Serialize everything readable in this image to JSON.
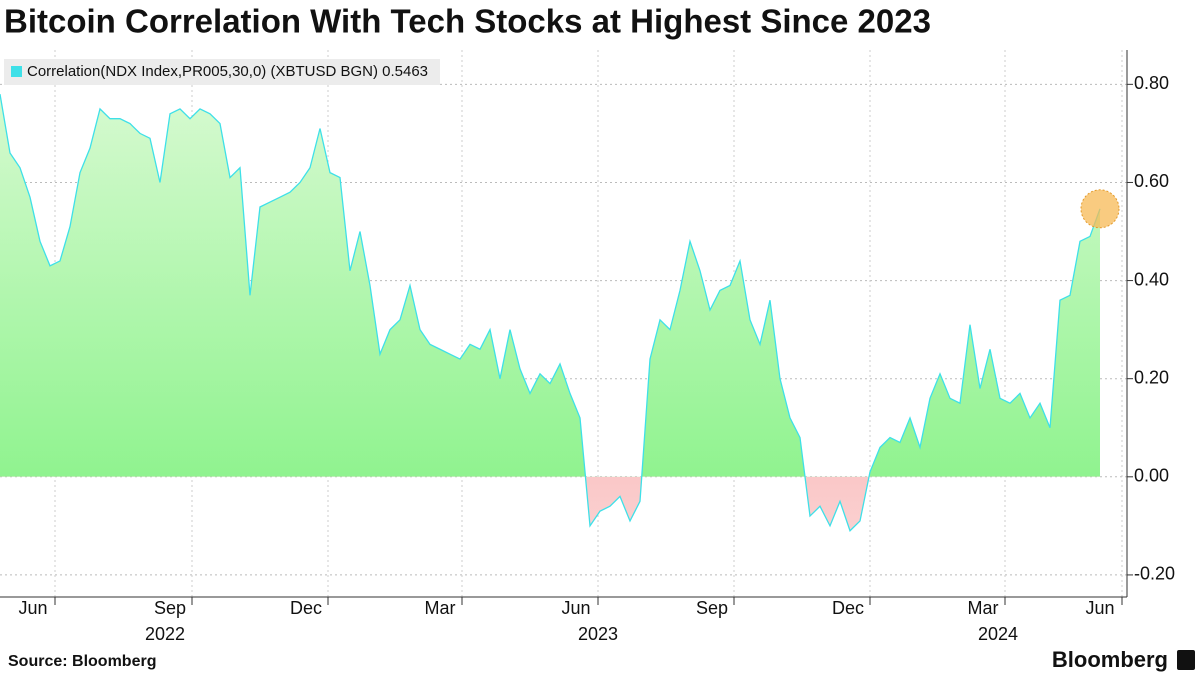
{
  "chart_data": {
    "type": "area",
    "title": "Bitcoin Correlation With Tech Stocks at Highest Since 2023",
    "source": "Source: Bloomberg",
    "brand": "Bloomberg",
    "series": [
      {
        "name": "Correlation(NDX Index,PR005,30,0) (XBTUSD BGN) 0.5463",
        "color": "#3ee0e8",
        "positive_color": "#86f286",
        "negative_color": "#f48a8a",
        "values": [
          0.78,
          0.66,
          0.63,
          0.57,
          0.48,
          0.43,
          0.44,
          0.51,
          0.62,
          0.67,
          0.75,
          0.73,
          0.73,
          0.72,
          0.7,
          0.69,
          0.6,
          0.74,
          0.75,
          0.73,
          0.75,
          0.74,
          0.72,
          0.61,
          0.63,
          0.37,
          0.55,
          0.56,
          0.57,
          0.58,
          0.6,
          0.63,
          0.71,
          0.62,
          0.61,
          0.42,
          0.5,
          0.39,
          0.25,
          0.3,
          0.32,
          0.39,
          0.3,
          0.27,
          0.26,
          0.25,
          0.24,
          0.27,
          0.26,
          0.3,
          0.2,
          0.3,
          0.22,
          0.17,
          0.21,
          0.19,
          0.23,
          0.17,
          0.12,
          -0.1,
          -0.07,
          -0.06,
          -0.04,
          -0.09,
          -0.05,
          0.24,
          0.32,
          0.3,
          0.38,
          0.48,
          0.42,
          0.34,
          0.38,
          0.39,
          0.44,
          0.32,
          0.27,
          0.36,
          0.2,
          0.12,
          0.08,
          -0.08,
          -0.06,
          -0.1,
          -0.05,
          -0.11,
          -0.09,
          0.01,
          0.06,
          0.08,
          0.07,
          0.12,
          0.06,
          0.16,
          0.21,
          0.16,
          0.15,
          0.31,
          0.18,
          0.26,
          0.16,
          0.15,
          0.17,
          0.12,
          0.15,
          0.1,
          0.36,
          0.37,
          0.48,
          0.49,
          0.5463
        ]
      }
    ],
    "last_marker_color": "#f7b955",
    "ylim": [
      -0.245,
      0.87
    ],
    "yticks": [
      {
        "value": -0.2,
        "label": "-0.20"
      },
      {
        "value": 0,
        "label": "0.00"
      },
      {
        "value": 0.2,
        "label": "0.20"
      },
      {
        "value": 0.4,
        "label": "0.40"
      },
      {
        "value": 0.6,
        "label": "0.60"
      },
      {
        "value": 0.8,
        "label": "0.80"
      }
    ],
    "xticks": [
      {
        "value": 3.3,
        "label": "Jun"
      },
      {
        "value": 17.0,
        "label": "Sep"
      },
      {
        "value": 30.6,
        "label": "Dec"
      },
      {
        "value": 44.0,
        "label": "Mar"
      },
      {
        "value": 57.6,
        "label": "Jun"
      },
      {
        "value": 71.2,
        "label": "Sep"
      },
      {
        "value": 84.8,
        "label": "Dec"
      },
      {
        "value": 98.3,
        "label": "Mar"
      },
      {
        "value": 110.0,
        "label": "Jun"
      }
    ],
    "year_labels": [
      {
        "value": 16.5,
        "label": "2022"
      },
      {
        "value": 59.8,
        "label": "2023"
      },
      {
        "value": 99.8,
        "label": "2024"
      }
    ],
    "grid": true
  }
}
